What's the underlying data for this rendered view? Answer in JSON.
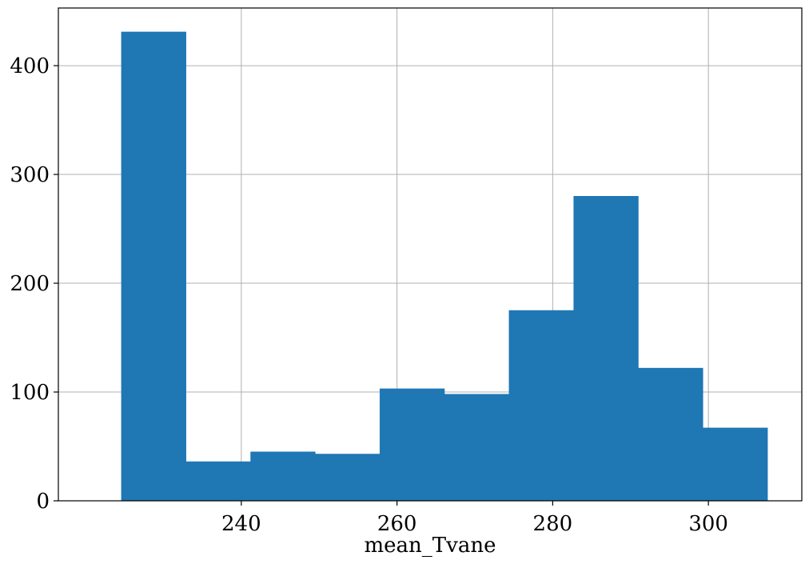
{
  "chart_data": {
    "type": "bar",
    "xlabel": "mean_Tvane",
    "ylabel": "",
    "xlim": [
      216.5,
      312
    ],
    "ylim": [
      0,
      453
    ],
    "grid": true,
    "bar_color": "#1f77b4",
    "x_ticks": [
      240,
      260,
      280,
      300
    ],
    "y_ticks": [
      0,
      100,
      200,
      300,
      400
    ],
    "bins": [
      {
        "x0": 224.6,
        "x1": 232.9,
        "count": 431
      },
      {
        "x0": 232.9,
        "x1": 241.2,
        "count": 36
      },
      {
        "x0": 241.2,
        "x1": 249.5,
        "count": 45
      },
      {
        "x0": 249.5,
        "x1": 257.8,
        "count": 43
      },
      {
        "x0": 257.8,
        "x1": 266.1,
        "count": 103
      },
      {
        "x0": 266.1,
        "x1": 274.4,
        "count": 98
      },
      {
        "x0": 274.4,
        "x1": 282.7,
        "count": 175
      },
      {
        "x0": 282.7,
        "x1": 291.0,
        "count": 280
      },
      {
        "x0": 291.0,
        "x1": 299.3,
        "count": 122
      },
      {
        "x0": 299.3,
        "x1": 307.6,
        "count": 67
      }
    ]
  }
}
